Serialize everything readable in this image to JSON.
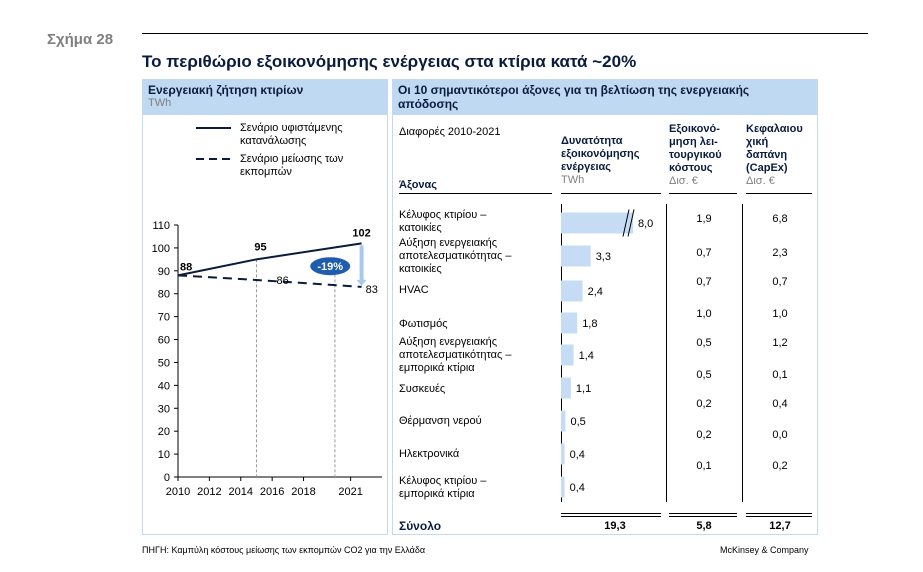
{
  "figure_label": "Σχήμα 28",
  "title": "Το περιθώριο εξοικονόμησης ενέργειας στα κτίρια κατά ~20%",
  "left_panel": {
    "title": "Ενεργειακή ζήτηση κτιρίων",
    "unit": "TWh",
    "legend": [
      {
        "label_line1": "Σενάριο υφιστάμενης",
        "label_line2": "κατανάλωσης",
        "style": "solid"
      },
      {
        "label_line1": "Σενάριο μείωσης των",
        "label_line2": "εκπομπών",
        "style": "dashed"
      }
    ],
    "reduction_badge": "-19%"
  },
  "right_panel": {
    "title_line1": "Οι 10 σημαντικότεροι άξονες για τη βελτίωση της ενεργειακής",
    "title_line2": "απόδοσης",
    "differences_label": "Διαφορές 2010-2021",
    "axis_header": "Άξονας",
    "col_potential": {
      "line1": "Δυνατότητα",
      "line2": "εξοικονόμησης",
      "line3": "ενέργειας",
      "unit": "TWh"
    },
    "col_opex": {
      "line1": "Εξοικονό-",
      "line2": "μηση λει-",
      "line3": "τουργικού",
      "line4": "κόστους",
      "unit": "Δισ. €"
    },
    "col_capex": {
      "line1": "Κεφαλαιου",
      "line2": "χική",
      "line3": "δαπάνη",
      "line4": "(CapEx)",
      "unit": "Δισ. €"
    },
    "rows": [
      {
        "line1": "Κέλυφος κτιρίου –",
        "line2": "κατοικίες",
        "line3": ""
      },
      {
        "line1": "Αύξηση ενεργειακής",
        "line2": "αποτελεσματικότητας –",
        "line3": "κατοικίες"
      },
      {
        "line1": "HVAC",
        "line2": "",
        "line3": ""
      },
      {
        "line1": "Φωτισμός",
        "line2": "",
        "line3": ""
      },
      {
        "line1": "Αύξηση ενεργειακής",
        "line2": "αποτελεσματικότητας –",
        "line3": "εμπορικά κτίρια"
      },
      {
        "line1": "Συσκευές",
        "line2": "",
        "line3": ""
      },
      {
        "line1": "Θέρμανση νερού",
        "line2": "",
        "line3": ""
      },
      {
        "line1": "Ηλεκτρονικά",
        "line2": "",
        "line3": ""
      },
      {
        "line1": "Κέλυφος κτιρίου –",
        "line2": "εμπορικά κτίρια",
        "line3": ""
      }
    ],
    "opex_values": [
      "1,9",
      "0,7",
      "0,7",
      "1,0",
      "0,5",
      "0,5",
      "0,2",
      "0,2",
      "0,1"
    ],
    "capex_values": [
      "6,8",
      "2,3",
      "0,7",
      "1,0",
      "1,2",
      "0,1",
      "0,4",
      "0,0",
      "0,2"
    ],
    "total_label": "Σύνολο",
    "total_potential": "19,3",
    "total_opex": "5,8",
    "total_capex": "12,7"
  },
  "footer": {
    "source": "ΠΗΓΗ: Καμπύλη κόστους μείωσης των εκπομπών CO2 για την Ελλάδα",
    "brand": "McKinsey & Company"
  },
  "chart_data": [
    {
      "type": "line",
      "title": "Ενεργειακή ζήτηση κτιρίων",
      "ylabel": "TWh",
      "ylim": [
        0,
        110
      ],
      "yticks": [
        0,
        10,
        20,
        30,
        40,
        50,
        60,
        70,
        80,
        90,
        100,
        110
      ],
      "xlim": [
        2010,
        2023
      ],
      "xticks": [
        2010,
        2012,
        2014,
        2016,
        2018,
        2021
      ],
      "grid": false,
      "legend": "top-right",
      "reference_years": [
        2015,
        2020
      ],
      "series": [
        {
          "name": "Σενάριο υφιστάμενης κατανάλωσης",
          "style": "solid",
          "x": [
            2010,
            2015,
            2021.7
          ],
          "y": [
            88,
            95,
            102
          ],
          "labels": [
            "88",
            "95",
            "102"
          ]
        },
        {
          "name": "Σενάριο μείωσης των εκπομπών",
          "style": "dashed",
          "x": [
            2010,
            2015,
            2021.7
          ],
          "y": [
            88,
            86,
            83
          ],
          "labels": [
            "",
            "86",
            "83"
          ]
        }
      ]
    },
    {
      "type": "bar",
      "orientation": "horizontal",
      "title": "Δυνατότητα εξοικονόμησης ενέργειας",
      "ylabel": "TWh",
      "categories": [
        "Κέλυφος κτιρίου – κατοικίες",
        "Αύξηση ενεργειακής αποτελεσματικότητας – κατοικίες",
        "HVAC",
        "Φωτισμός",
        "Αύξηση ενεργειακής αποτελεσματικότητας – εμπορικά κτίρια",
        "Συσκευές",
        "Θέρμανση νερού",
        "Ηλεκτρονικά",
        "Κέλυφος κτιρίου – εμπορικά κτίρια"
      ],
      "values": [
        8.0,
        3.3,
        2.4,
        1.8,
        1.4,
        1.1,
        0.5,
        0.4,
        0.4
      ],
      "value_labels": [
        "8,0",
        "3,3",
        "2,4",
        "1,8",
        "1,4",
        "1,1",
        "0,5",
        "0,4",
        "0,4"
      ],
      "axis_break_on": [
        0
      ]
    }
  ],
  "colors": {
    "navy": "#0a1b3d",
    "panel_header": "#bfd9f2",
    "bar": "#c6dcf5",
    "badge": "#1f5cad"
  }
}
